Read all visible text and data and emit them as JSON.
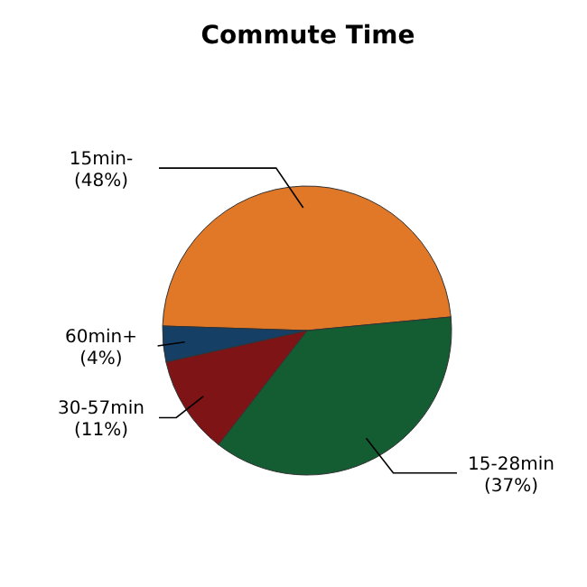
{
  "chart_data": {
    "type": "pie",
    "title": "Commute Time",
    "categories": [
      "15min-",
      "15-28min",
      "30-57min",
      "60min+"
    ],
    "values": [
      48,
      37,
      11,
      4
    ],
    "colors": [
      "#e07828",
      "#145c32",
      "#7f1416",
      "#163f66"
    ],
    "value_labels": [
      "(48%)",
      "(37%)",
      "(11%)",
      "(4%)"
    ]
  }
}
